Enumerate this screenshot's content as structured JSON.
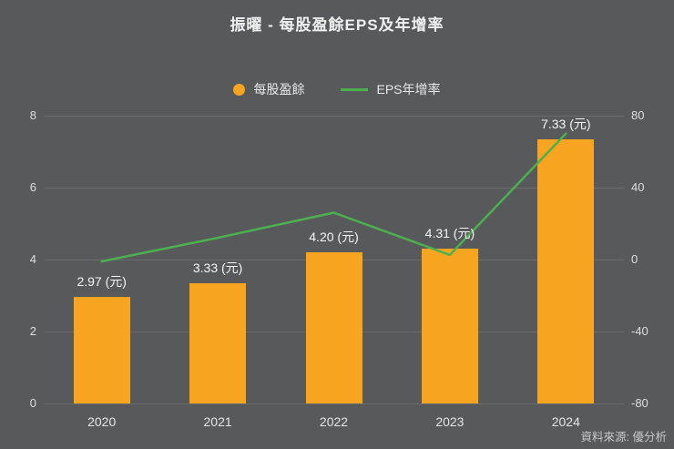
{
  "header": {
    "title": "振曜 - 每股盈餘EPS及年增率"
  },
  "legend": {
    "items": [
      {
        "label": "每股盈餘",
        "marker": "dot",
        "color": "#F7A521"
      },
      {
        "label": "EPS年增率",
        "marker": "line",
        "color": "#4CAF50"
      }
    ]
  },
  "footer": {
    "source": "資料來源: 優分析"
  },
  "chart_data": {
    "type": "bar",
    "combo_with_line": true,
    "title": "振曜 - 每股盈餘EPS及年增率",
    "categories": [
      "2020",
      "2021",
      "2022",
      "2023",
      "2024"
    ],
    "series": [
      {
        "name": "每股盈餘",
        "type": "bar",
        "axis": "left",
        "color": "#F7A521",
        "values": [
          2.97,
          3.33,
          4.2,
          4.31,
          7.33
        ],
        "labels": [
          "2.97 (元)",
          "3.33 (元)",
          "4.20 (元)",
          "4.31 (元)",
          "7.33 (元)"
        ]
      },
      {
        "name": "EPS年增率",
        "type": "line",
        "axis": "right",
        "color": "#4CAF50",
        "values": [
          -1.0,
          12.1,
          26.1,
          2.6,
          70.1
        ]
      }
    ],
    "left_axis": {
      "min": 0,
      "max": 8,
      "ticks": [
        0,
        2,
        4,
        6,
        8
      ]
    },
    "right_axis": {
      "min": -80,
      "max": 80,
      "ticks": [
        -80,
        -40,
        0,
        40,
        80
      ]
    },
    "grid": true,
    "legend_position": "top",
    "background": "#58595B"
  }
}
